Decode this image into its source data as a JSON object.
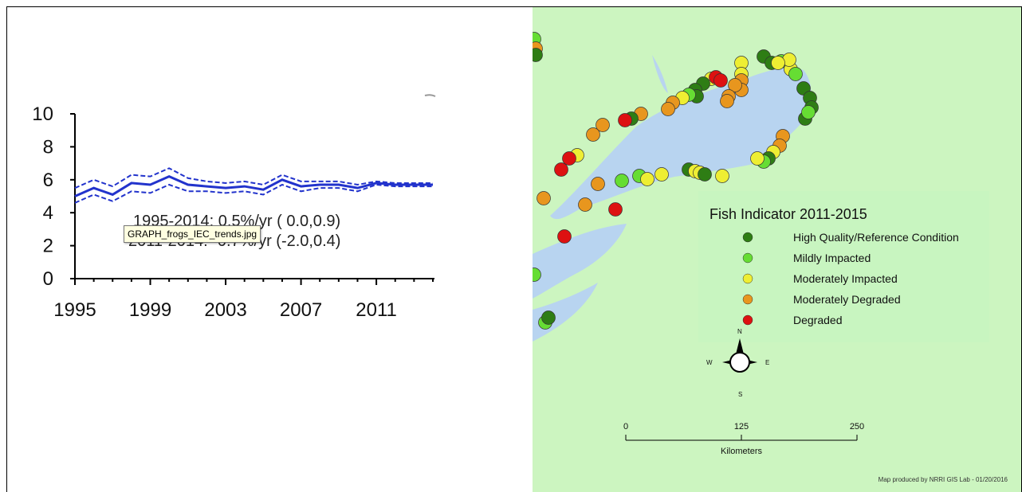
{
  "tooltip": "GRAPH_frogs_IEC_trends.jpg",
  "chart_data": {
    "type": "line",
    "x": [
      1995,
      1996,
      1997,
      1998,
      1999,
      2000,
      2001,
      2002,
      2003,
      2004,
      2005,
      2006,
      2007,
      2008,
      2009,
      2010,
      2011,
      2012,
      2013,
      2014
    ],
    "series": [
      {
        "values": [
          5.0,
          5.5,
          5.1,
          5.8,
          5.7,
          6.2,
          5.7,
          5.6,
          5.5,
          5.6,
          5.4,
          6.0,
          5.6,
          5.7,
          5.7,
          5.5,
          5.8,
          5.7,
          5.7,
          5.7
        ]
      },
      {
        "values": [
          5.5,
          6.0,
          5.6,
          6.3,
          6.2,
          6.7,
          6.1,
          5.9,
          5.8,
          5.9,
          5.7,
          6.3,
          5.9,
          5.9,
          5.9,
          5.7,
          5.9,
          5.8,
          5.8,
          5.8
        ]
      },
      {
        "values": [
          4.6,
          5.1,
          4.7,
          5.3,
          5.2,
          5.7,
          5.3,
          5.3,
          5.2,
          5.3,
          5.1,
          5.7,
          5.3,
          5.5,
          5.5,
          5.3,
          5.7,
          5.6,
          5.6,
          5.6
        ]
      }
    ],
    "ylim": [
      0,
      10
    ],
    "xlim": [
      1995,
      2014
    ],
    "yticks": [
      0,
      2,
      4,
      6,
      8,
      10
    ],
    "xticks": [
      1995,
      1999,
      2003,
      2007,
      2011
    ],
    "annotations": [
      "1995-2014: 0.5%/yr ( 0.0,0.9)",
      "2011-2014: -0.7%/yr (-2.0,0.4)"
    ],
    "colors": {
      "line": "#2233cc",
      "axis": "#000000"
    }
  },
  "map": {
    "legend_title": "Fish Indicator 2011-2015",
    "legend": [
      {
        "label": "High Quality/Reference Condition",
        "color": "#2e7d14"
      },
      {
        "label": "Mildly Impacted",
        "color": "#66dd33"
      },
      {
        "label": "Moderately Impacted",
        "color": "#eeee33"
      },
      {
        "label": "Moderately Degraded",
        "color": "#e8961e"
      },
      {
        "label": "Degraded",
        "color": "#dd1111"
      }
    ],
    "compass": {
      "n": "N",
      "s": "S",
      "e": "E",
      "w": "W"
    },
    "scale": {
      "labels": [
        "0",
        "125",
        "250"
      ],
      "unit": "Kilometers"
    },
    "credit": "Map produced by NRRI GIS Lab - 01/20/2016",
    "colors": {
      "land": "#ccf5c0",
      "water": "#b8d4f0",
      "legend_bg": "#c8f5c0"
    }
  }
}
